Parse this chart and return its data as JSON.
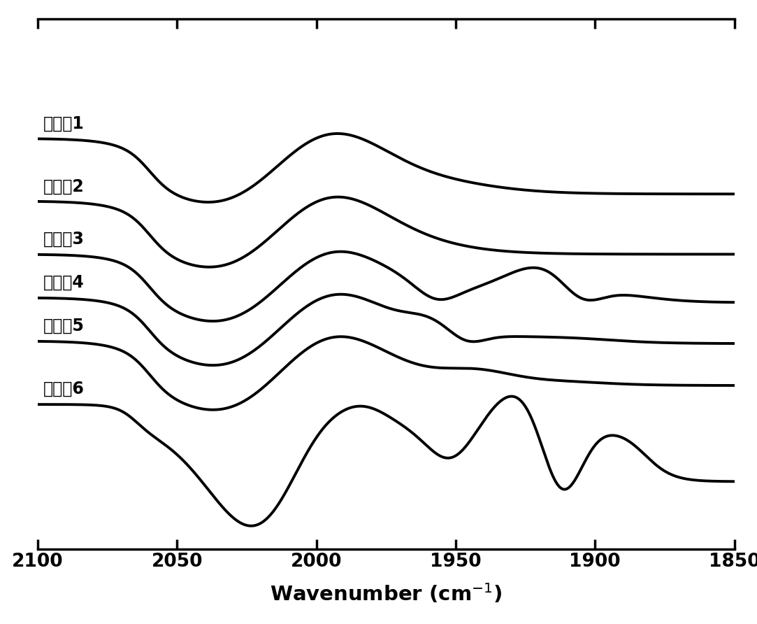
{
  "xlim": [
    2100,
    1850
  ],
  "xticks": [
    2100,
    2050,
    2000,
    1950,
    1900,
    1850
  ],
  "labels": [
    "模拟特1",
    "模拟特2",
    "模拟特3",
    "模拟特4",
    "模拟特5",
    "模拟特6"
  ],
  "offsets": [
    5.5,
    4.2,
    3.1,
    2.2,
    1.3,
    0.0
  ],
  "background_color": "#ffffff",
  "line_color": "#000000",
  "line_width": 2.8
}
